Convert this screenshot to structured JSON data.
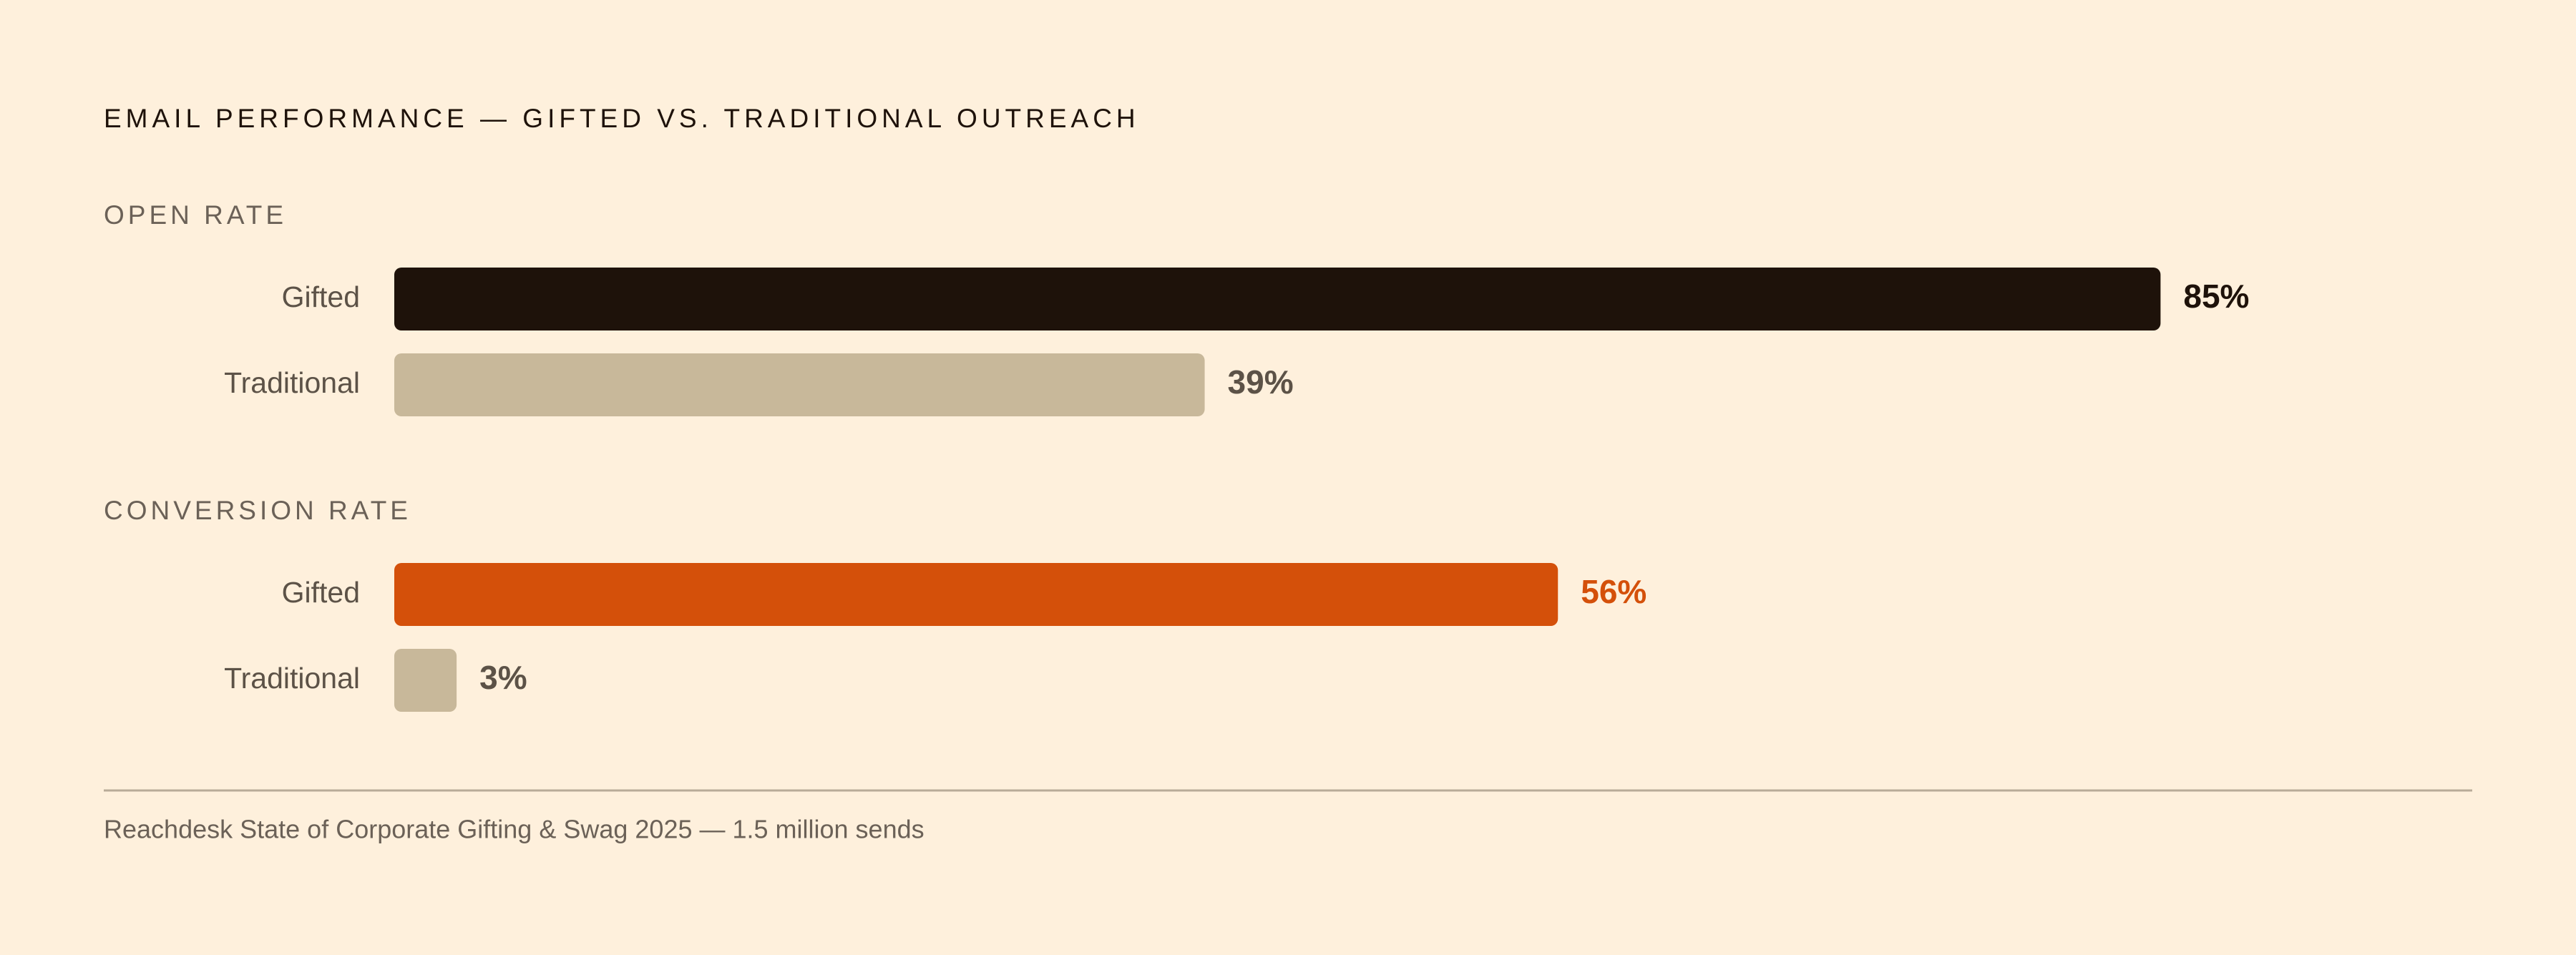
{
  "title": "EMAIL PERFORMANCE — GIFTED VS. TRADITIONAL OUTREACH",
  "source": "Reachdesk State of Corporate Gifting & Swag 2025 — 1.5 million sends",
  "chart_data": [
    {
      "type": "bar",
      "orientation": "horizontal",
      "title": "OPEN RATE",
      "categories": [
        "Gifted",
        "Traditional"
      ],
      "values": [
        85,
        39
      ],
      "value_labels": [
        "85%",
        "39%"
      ],
      "colors": [
        "#1e120a",
        "#c8b89a"
      ],
      "value_label_colors": [
        "#1e120a",
        "#5c5247"
      ],
      "xlim": [
        0,
        100
      ]
    },
    {
      "type": "bar",
      "orientation": "horizontal",
      "title": "CONVERSION RATE",
      "categories": [
        "Gifted",
        "Traditional"
      ],
      "values": [
        56,
        3
      ],
      "value_labels": [
        "56%",
        "3%"
      ],
      "colors": [
        "#d4500a",
        "#c8b89a"
      ],
      "value_label_colors": [
        "#d4500a",
        "#5c5247"
      ],
      "xlim": [
        0,
        100
      ]
    }
  ]
}
